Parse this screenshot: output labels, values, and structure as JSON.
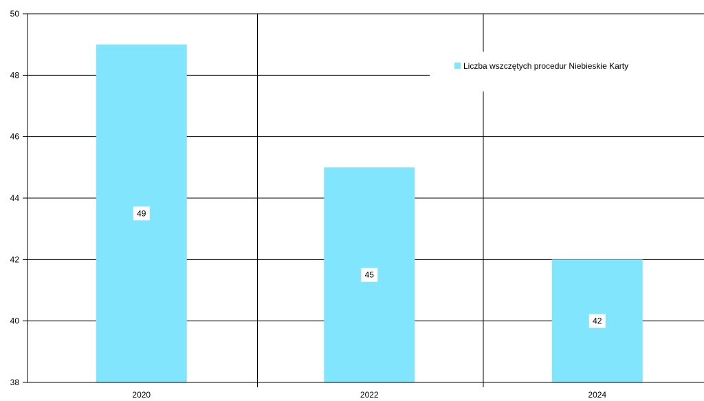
{
  "chart_data": {
    "type": "bar",
    "categories": [
      "2020",
      "2022",
      "2024"
    ],
    "series": [
      {
        "name": "Liczba wszczętych procedur Niebieskie Karty",
        "values": [
          49,
          45,
          42
        ]
      }
    ],
    "ylim": [
      38,
      50
    ],
    "yticks": [
      38,
      40,
      42,
      44,
      46,
      48,
      50
    ],
    "data_labels": [
      "49",
      "45",
      "42"
    ],
    "grid": "horizontal and vertical",
    "legend_position": "top-right",
    "colors": {
      "bar": "#80e5fd",
      "grid": "#000000",
      "background": "#ffffff"
    }
  }
}
